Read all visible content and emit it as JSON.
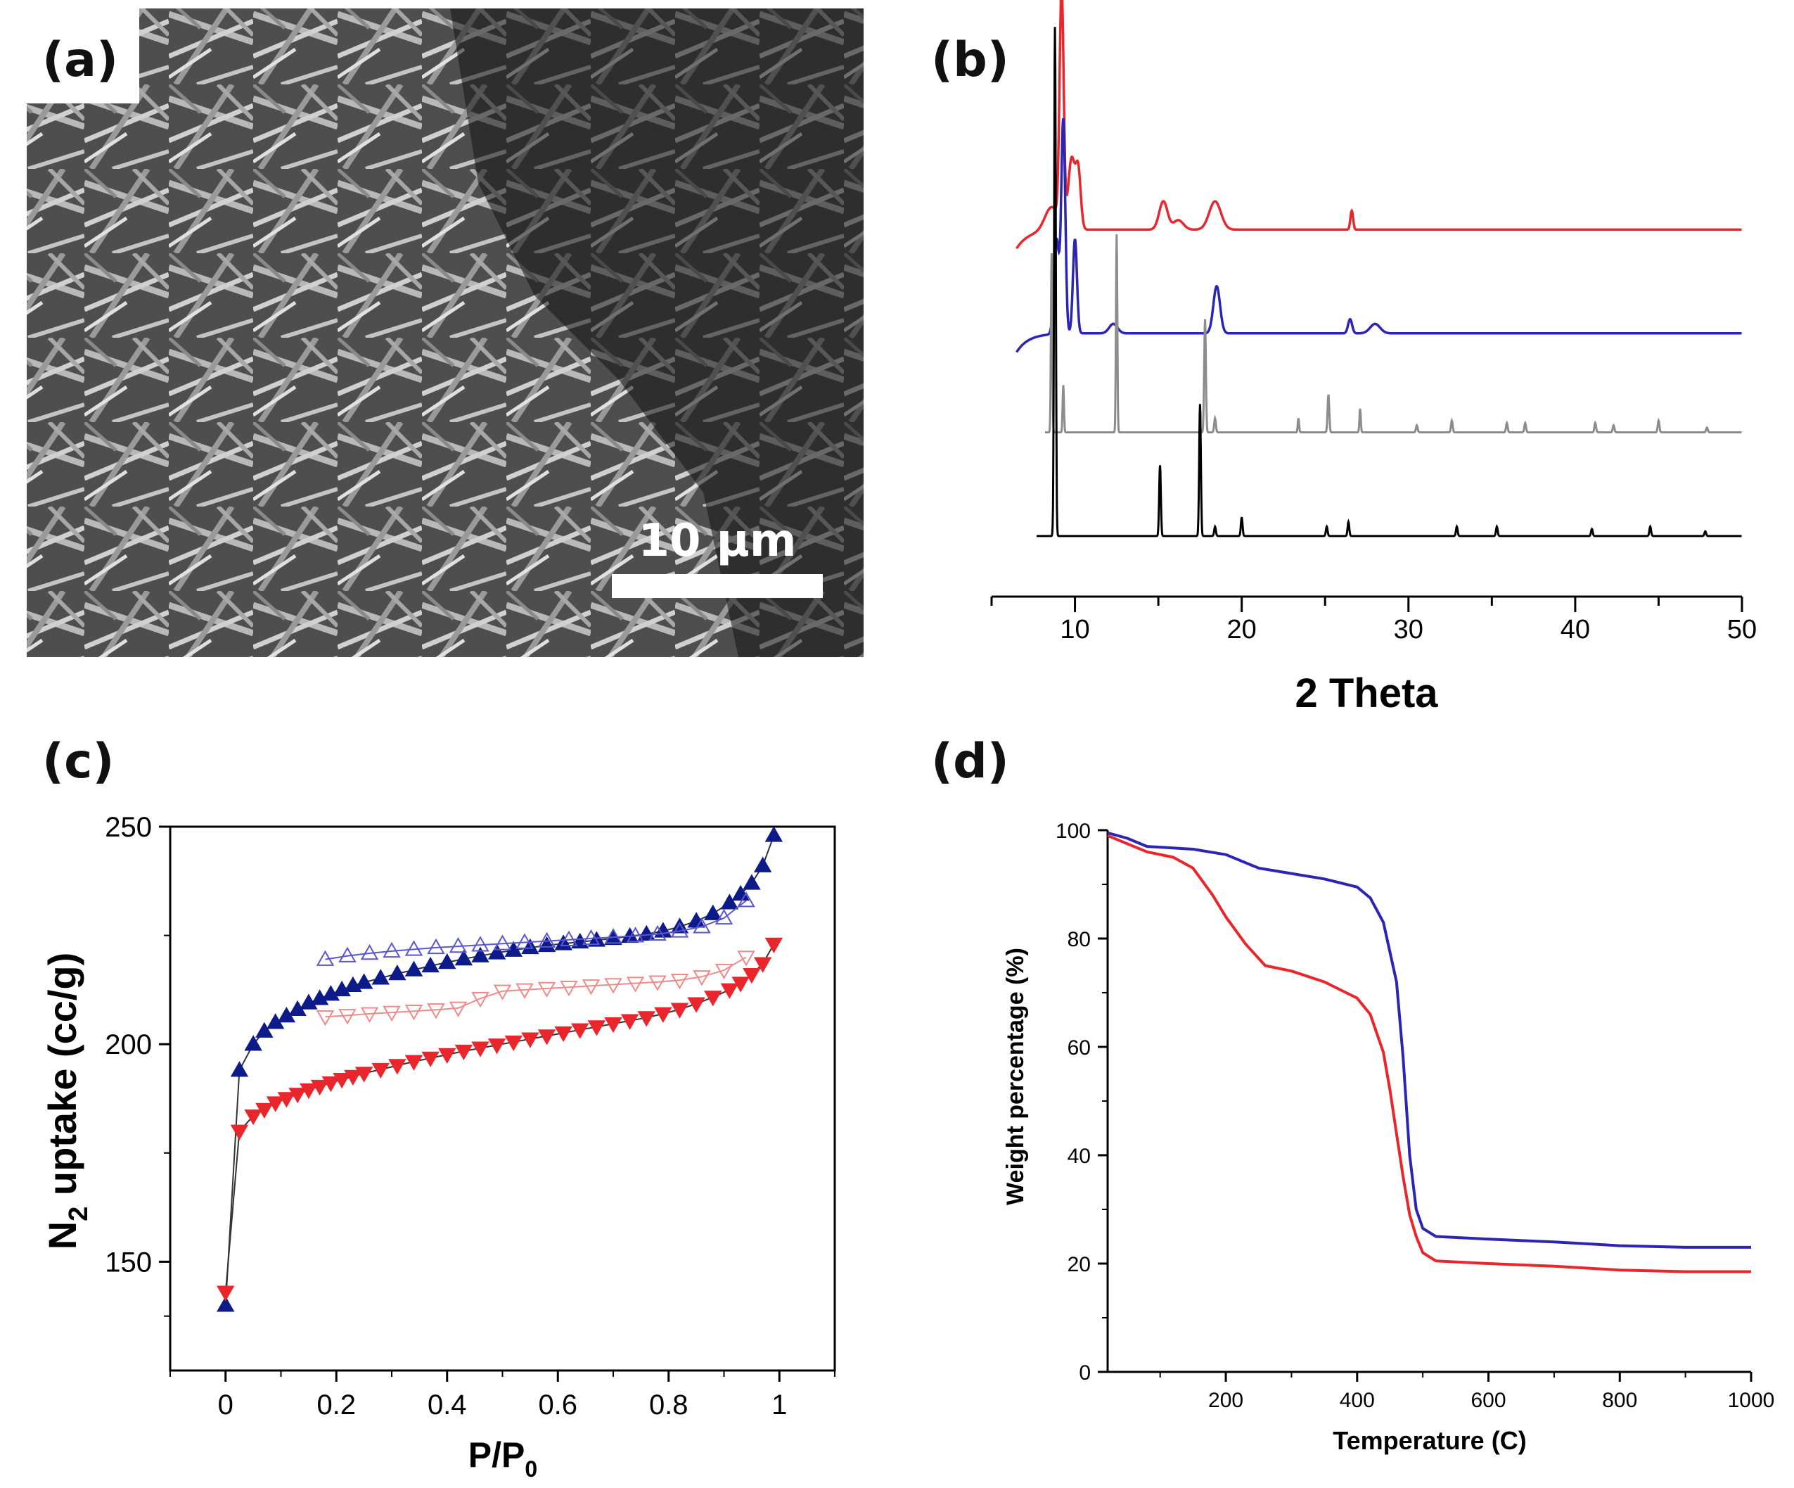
{
  "panels": {
    "a": {
      "label": "(a)",
      "scalebar_label": "10 μm"
    },
    "b": {
      "label": "(b)"
    },
    "c": {
      "label": "(c)"
    },
    "d": {
      "label": "(d)"
    }
  },
  "colors": {
    "red": "#e8262c",
    "blue": "#2b24b5",
    "gray": "#8c8c8c",
    "black": "#000000",
    "navy": "#0d1a8a"
  },
  "chart_data": [
    {
      "id": "b",
      "type": "line",
      "xlabel": "2 Theta",
      "ylabel": "",
      "xlim": [
        5,
        50
      ],
      "xticks": [
        10,
        20,
        30,
        40,
        50
      ],
      "series": [
        {
          "color": "#e8262c",
          "baseline": 0.68,
          "peaks": [
            [
              8.6,
              0.05,
              0.4
            ],
            [
              9.2,
              0.5,
              0.12
            ],
            [
              9.8,
              0.15,
              0.2
            ],
            [
              10.2,
              0.12,
              0.15
            ],
            [
              15.3,
              0.06,
              0.25
            ],
            [
              16.2,
              0.02,
              0.3
            ],
            [
              18.4,
              0.06,
              0.35
            ],
            [
              26.6,
              0.04,
              0.08
            ]
          ]
        },
        {
          "color": "#2b24b5",
          "baseline": 0.46,
          "peaks": [
            [
              8.9,
              0.2,
              0.15
            ],
            [
              9.3,
              0.45,
              0.12
            ],
            [
              10.0,
              0.2,
              0.12
            ],
            [
              12.3,
              0.02,
              0.25
            ],
            [
              18.5,
              0.1,
              0.2
            ],
            [
              26.5,
              0.03,
              0.12
            ],
            [
              28.0,
              0.02,
              0.3
            ]
          ]
        },
        {
          "color": "#8c8c8c",
          "baseline": 0.25,
          "peaks": [
            [
              8.6,
              0.38,
              0.04
            ],
            [
              9.3,
              0.1,
              0.04
            ],
            [
              12.5,
              0.42,
              0.04
            ],
            [
              17.8,
              0.24,
              0.05
            ],
            [
              18.4,
              0.03,
              0.05
            ],
            [
              23.4,
              0.03,
              0.04
            ],
            [
              25.2,
              0.08,
              0.05
            ],
            [
              27.1,
              0.05,
              0.04
            ],
            [
              30.5,
              0.015,
              0.05
            ],
            [
              32.6,
              0.025,
              0.05
            ],
            [
              35.9,
              0.02,
              0.05
            ],
            [
              37.0,
              0.02,
              0.05
            ],
            [
              41.2,
              0.02,
              0.05
            ],
            [
              42.3,
              0.015,
              0.05
            ],
            [
              45.0,
              0.025,
              0.05
            ],
            [
              47.9,
              0.01,
              0.05
            ]
          ]
        },
        {
          "color": "#000000",
          "baseline": 0.03,
          "peaks": [
            [
              8.8,
              1.08,
              0.05
            ],
            [
              15.1,
              0.15,
              0.05
            ],
            [
              17.5,
              0.28,
              0.05
            ],
            [
              18.4,
              0.02,
              0.05
            ],
            [
              20.0,
              0.04,
              0.05
            ],
            [
              25.1,
              0.02,
              0.05
            ],
            [
              26.4,
              0.03,
              0.05
            ],
            [
              32.9,
              0.02,
              0.05
            ],
            [
              35.3,
              0.02,
              0.05
            ],
            [
              41.0,
              0.015,
              0.05
            ],
            [
              44.5,
              0.02,
              0.05
            ],
            [
              47.8,
              0.01,
              0.05
            ]
          ]
        }
      ]
    },
    {
      "id": "c",
      "type": "scatter",
      "xlabel": "P/P",
      "xlabel_sub": "0",
      "ylabel": "N",
      "ylabel_sub": "2",
      "ylabel_rest": " uptake (cc/g)",
      "xlim": [
        -0.1,
        1.1
      ],
      "ylim": [
        125,
        250
      ],
      "xticks": [
        0,
        0.2,
        0.4,
        0.6,
        0.8,
        1
      ],
      "xtick_labels": [
        "0",
        "0.2",
        "0.4",
        "0.6",
        "0.8",
        "1"
      ],
      "yticks": [
        150,
        200,
        250
      ],
      "series": [
        {
          "color": "#0d1a8a",
          "marker": "triangle-up-filled",
          "x": [
            0.0,
            0.025,
            0.05,
            0.07,
            0.09,
            0.11,
            0.13,
            0.15,
            0.17,
            0.19,
            0.21,
            0.23,
            0.25,
            0.28,
            0.31,
            0.34,
            0.37,
            0.4,
            0.43,
            0.46,
            0.49,
            0.52,
            0.55,
            0.58,
            0.61,
            0.64,
            0.67,
            0.7,
            0.73,
            0.76,
            0.79,
            0.82,
            0.85,
            0.88,
            0.91,
            0.93,
            0.95,
            0.97,
            0.99
          ],
          "y": [
            140,
            194,
            200,
            203,
            205,
            206.5,
            208,
            209.5,
            210.5,
            211.5,
            212.5,
            213.5,
            214.2,
            215.2,
            216.2,
            217.1,
            218,
            218.8,
            219.6,
            220.3,
            221,
            221.6,
            222.2,
            222.7,
            223.1,
            223.5,
            223.9,
            224.3,
            224.8,
            225.3,
            226,
            227,
            228.3,
            230,
            232.5,
            234.5,
            237,
            241,
            248
          ]
        },
        {
          "color": "#5a55d0",
          "marker": "triangle-up-open",
          "x": [
            0.18,
            0.22,
            0.26,
            0.3,
            0.34,
            0.38,
            0.42,
            0.46,
            0.5,
            0.54,
            0.58,
            0.62,
            0.66,
            0.7,
            0.74,
            0.78,
            0.82,
            0.86,
            0.9,
            0.94
          ],
          "y": [
            219.5,
            220.3,
            220.9,
            221.4,
            221.8,
            222.2,
            222.5,
            222.8,
            223.1,
            223.4,
            223.7,
            224,
            224.3,
            224.6,
            224.9,
            225.3,
            226,
            227,
            229,
            233
          ]
        },
        {
          "color": "#e8262c",
          "marker": "triangle-down-filled",
          "x": [
            0.0,
            0.025,
            0.05,
            0.07,
            0.09,
            0.11,
            0.13,
            0.15,
            0.17,
            0.19,
            0.21,
            0.23,
            0.25,
            0.28,
            0.31,
            0.34,
            0.37,
            0.4,
            0.43,
            0.46,
            0.49,
            0.52,
            0.55,
            0.58,
            0.61,
            0.64,
            0.67,
            0.7,
            0.73,
            0.76,
            0.79,
            0.82,
            0.85,
            0.88,
            0.91,
            0.93,
            0.95,
            0.97,
            0.99
          ],
          "y": [
            143,
            180,
            183.5,
            185,
            186.5,
            187.5,
            188.5,
            189.5,
            190.3,
            191.1,
            191.9,
            192.6,
            193.3,
            194.2,
            195.1,
            196,
            196.8,
            197.6,
            198.4,
            199.1,
            199.8,
            200.5,
            201.2,
            201.9,
            202.6,
            203.3,
            204,
            204.7,
            205.4,
            206.1,
            207,
            208,
            209.3,
            210.8,
            212.5,
            214,
            216,
            218.5,
            223
          ]
        },
        {
          "color": "#f08a8a",
          "marker": "triangle-down-open",
          "x": [
            0.18,
            0.22,
            0.26,
            0.3,
            0.34,
            0.38,
            0.42,
            0.46,
            0.5,
            0.54,
            0.58,
            0.62,
            0.66,
            0.7,
            0.74,
            0.78,
            0.82,
            0.86,
            0.9,
            0.94
          ],
          "y": [
            206.3,
            206.6,
            207,
            207.3,
            207.6,
            207.9,
            208.3,
            210.5,
            212.2,
            212.5,
            212.8,
            213.1,
            213.4,
            213.7,
            214,
            214.3,
            214.7,
            215.5,
            217,
            220
          ]
        }
      ]
    },
    {
      "id": "d",
      "type": "line",
      "xlabel": "Temperature (C)",
      "ylabel": "Weight percentage (%)",
      "xlim": [
        20,
        1000
      ],
      "ylim": [
        0,
        100
      ],
      "xticks": [
        200,
        400,
        600,
        800,
        1000
      ],
      "yticks": [
        0,
        20,
        40,
        60,
        80,
        100
      ],
      "series": [
        {
          "color": "#2b24b5",
          "x": [
            20,
            50,
            80,
            150,
            200,
            250,
            300,
            350,
            400,
            420,
            440,
            460,
            470,
            480,
            490,
            500,
            520,
            600,
            700,
            800,
            900,
            1000
          ],
          "y": [
            99.5,
            98.5,
            97,
            96.5,
            95.5,
            93,
            92,
            91,
            89.5,
            87.5,
            83,
            72,
            58,
            40,
            30,
            26.5,
            25,
            24.5,
            24,
            23.3,
            23,
            23
          ]
        },
        {
          "color": "#e8262c",
          "x": [
            20,
            50,
            80,
            120,
            150,
            180,
            200,
            230,
            260,
            300,
            350,
            400,
            420,
            440,
            450,
            460,
            470,
            480,
            490,
            500,
            520,
            600,
            700,
            800,
            900,
            1000
          ],
          "y": [
            99,
            97.5,
            96,
            95,
            93,
            88,
            84,
            79,
            75,
            74,
            72,
            69,
            66,
            59,
            52,
            44,
            36,
            29,
            25,
            22,
            20.5,
            20,
            19.5,
            18.8,
            18.5,
            18.5
          ]
        }
      ]
    }
  ]
}
